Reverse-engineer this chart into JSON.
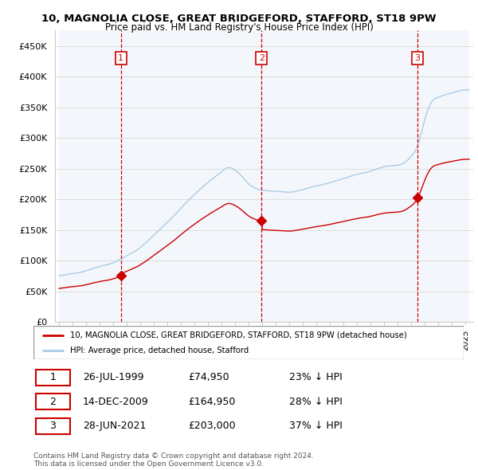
{
  "title_line1": "10, MAGNOLIA CLOSE, GREAT BRIDGEFORD, STAFFORD, ST18 9PW",
  "title_line2": "Price paid vs. HM Land Registry's House Price Index (HPI)",
  "ylim": [
    0,
    475000
  ],
  "yticks": [
    0,
    50000,
    100000,
    150000,
    200000,
    250000,
    300000,
    350000,
    400000,
    450000
  ],
  "ytick_labels": [
    "£0",
    "£50K",
    "£100K",
    "£150K",
    "£200K",
    "£250K",
    "£300K",
    "£350K",
    "£400K",
    "£450K"
  ],
  "hpi_color": "#aacce8",
  "price_color": "#cc0000",
  "vline_color": "#cc0000",
  "sale_dates": [
    1999.57,
    2009.96,
    2021.49
  ],
  "sale_prices": [
    74950,
    164950,
    203000
  ],
  "sale_labels": [
    "1",
    "2",
    "3"
  ],
  "legend_line1": "10, MAGNOLIA CLOSE, GREAT BRIDGEFORD, STAFFORD, ST18 9PW (detached house)",
  "legend_line2": "HPI: Average price, detached house, Stafford",
  "table_entries": [
    [
      "1",
      "26-JUL-1999",
      "£74,950",
      "23% ↓ HPI"
    ],
    [
      "2",
      "14-DEC-2009",
      "£164,950",
      "28% ↓ HPI"
    ],
    [
      "3",
      "28-JUN-2021",
      "£203,000",
      "37% ↓ HPI"
    ]
  ],
  "footnote": "Contains HM Land Registry data © Crown copyright and database right 2024.\nThis data is licensed under the Open Government Licence v3.0.",
  "background_color": "#ffffff",
  "grid_color": "#dddddd",
  "shade_color": "#e8f0f8"
}
